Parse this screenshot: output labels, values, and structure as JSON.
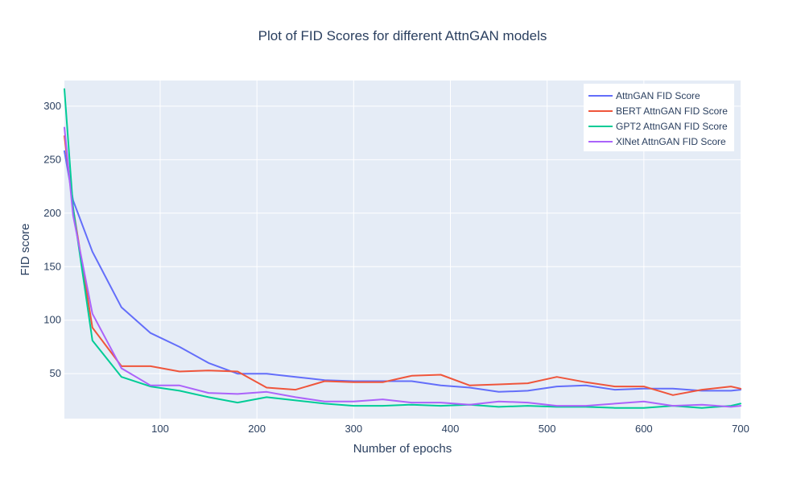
{
  "chart_data": {
    "type": "line",
    "title": "Plot of FID Scores for different AttnGAN models",
    "xlabel": "Number of epochs",
    "ylabel": "FID score",
    "xlim": [
      1,
      700
    ],
    "ylim": [
      8,
      324
    ],
    "xticks": [
      100,
      200,
      300,
      400,
      500,
      600,
      700
    ],
    "yticks": [
      50,
      100,
      150,
      200,
      250,
      300
    ],
    "grid": true,
    "legend_position": "top-right",
    "plot_background": "#e5ecf6",
    "x": [
      1,
      10,
      30,
      60,
      90,
      120,
      150,
      180,
      210,
      240,
      270,
      300,
      330,
      360,
      390,
      420,
      450,
      480,
      510,
      540,
      570,
      600,
      630,
      660,
      690,
      700
    ],
    "series": [
      {
        "name": "AttnGAN FID Score",
        "color": "#636efa",
        "values": [
          258,
          212,
          164,
          112,
          88,
          75,
          60,
          50,
          50,
          47,
          44,
          43,
          43,
          43,
          39,
          37,
          33,
          34,
          38,
          39,
          35,
          36,
          36,
          34,
          34,
          35
        ]
      },
      {
        "name": "BERT AttnGAN FID Score",
        "color": "#ef553b",
        "values": [
          272,
          205,
          93,
          57,
          57,
          52,
          53,
          52,
          37,
          35,
          43,
          42,
          42,
          48,
          49,
          39,
          40,
          41,
          47,
          42,
          38,
          38,
          30,
          35,
          38,
          36
        ]
      },
      {
        "name": "GPT2 AttnGAN FID Score",
        "color": "#00cc96",
        "values": [
          316,
          205,
          81,
          47,
          38,
          34,
          28,
          23,
          28,
          25,
          22,
          20,
          20,
          21,
          20,
          21,
          19,
          20,
          19,
          19,
          18,
          18,
          20,
          18,
          20,
          22
        ]
      },
      {
        "name": "XlNet AttnGAN FID Score",
        "color": "#ab63fa",
        "values": [
          280,
          198,
          106,
          55,
          39,
          39,
          32,
          31,
          33,
          28,
          24,
          24,
          26,
          23,
          23,
          21,
          24,
          23,
          20,
          20,
          22,
          24,
          20,
          21,
          19,
          20
        ]
      }
    ]
  }
}
